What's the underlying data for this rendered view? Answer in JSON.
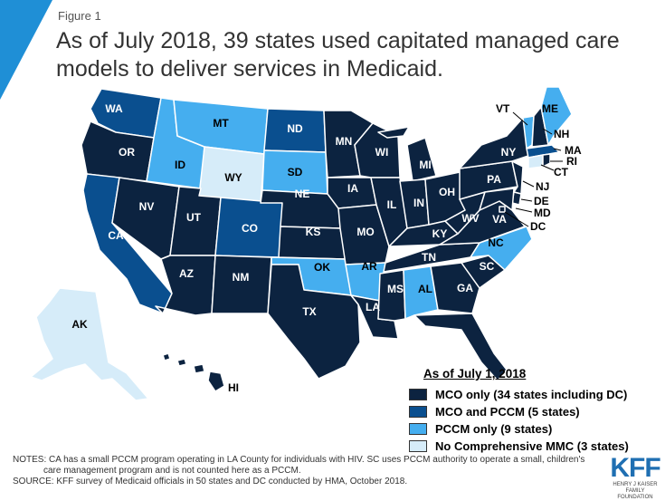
{
  "header": {
    "figure_label": "Figure 1",
    "title": "As of July 2018, 39 states used capitated managed care models to deliver services in Medicaid."
  },
  "colors": {
    "mco_only": "#0c2340",
    "mco_pccm": "#0a4f8f",
    "pccm_only": "#45aeef",
    "no_mmc": "#d6ecf9",
    "accent": "#1f8fd6"
  },
  "legend": {
    "title": "As of July 1, 2018",
    "items": [
      {
        "label": "MCO only (34 states including DC)",
        "category": "mco_only"
      },
      {
        "label": "MCO and PCCM (5 states)",
        "category": "mco_pccm"
      },
      {
        "label": "PCCM only (9 states)",
        "category": "pccm_only"
      },
      {
        "label": "No Comprehensive MMC (3 states)",
        "category": "no_mmc"
      }
    ]
  },
  "states": {
    "WA": "mco_pccm",
    "OR": "mco_only",
    "CA": "mco_pccm",
    "NV": "mco_only",
    "ID": "pccm_only",
    "MT": "pccm_only",
    "WY": "no_mmc",
    "UT": "mco_only",
    "AZ": "mco_only",
    "CO": "mco_pccm",
    "NM": "mco_only",
    "ND": "mco_pccm",
    "SD": "pccm_only",
    "NE": "mco_only",
    "KS": "mco_only",
    "OK": "pccm_only",
    "TX": "mco_only",
    "MN": "mco_only",
    "IA": "mco_only",
    "MO": "mco_only",
    "AR": "pccm_only",
    "LA": "mco_only",
    "WI": "mco_only",
    "IL": "mco_only",
    "MI": "mco_only",
    "IN": "mco_only",
    "OH": "mco_only",
    "KY": "mco_only",
    "TN": "mco_only",
    "MS": "mco_only",
    "AL": "pccm_only",
    "GA": "mco_only",
    "FL": "mco_only",
    "SC": "mco_only",
    "NC": "pccm_only",
    "VA": "mco_only",
    "WV": "mco_only",
    "PA": "mco_only",
    "NY": "mco_only",
    "VT": "pccm_only",
    "NH": "mco_only",
    "ME": "pccm_only",
    "MA": "mco_pccm",
    "RI": "mco_only",
    "CT": "no_mmc",
    "NJ": "mco_only",
    "DE": "mco_only",
    "MD": "mco_only",
    "DC": "mco_only",
    "AK": "no_mmc",
    "HI": "mco_only"
  },
  "notes": [
    "NOTES: CA has a small PCCM program operating in LA County for individuals with HIV. SC uses PCCM authority to operate a small, children's",
    "care management program and is not counted here as a PCCM.",
    "SOURCE: KFF survey of Medicaid officials in 50 states and DC conducted by HMA, October 2018."
  ],
  "logo": {
    "text": "KFF",
    "subtitle": "HENRY J KAISER FAMILY FOUNDATION"
  }
}
